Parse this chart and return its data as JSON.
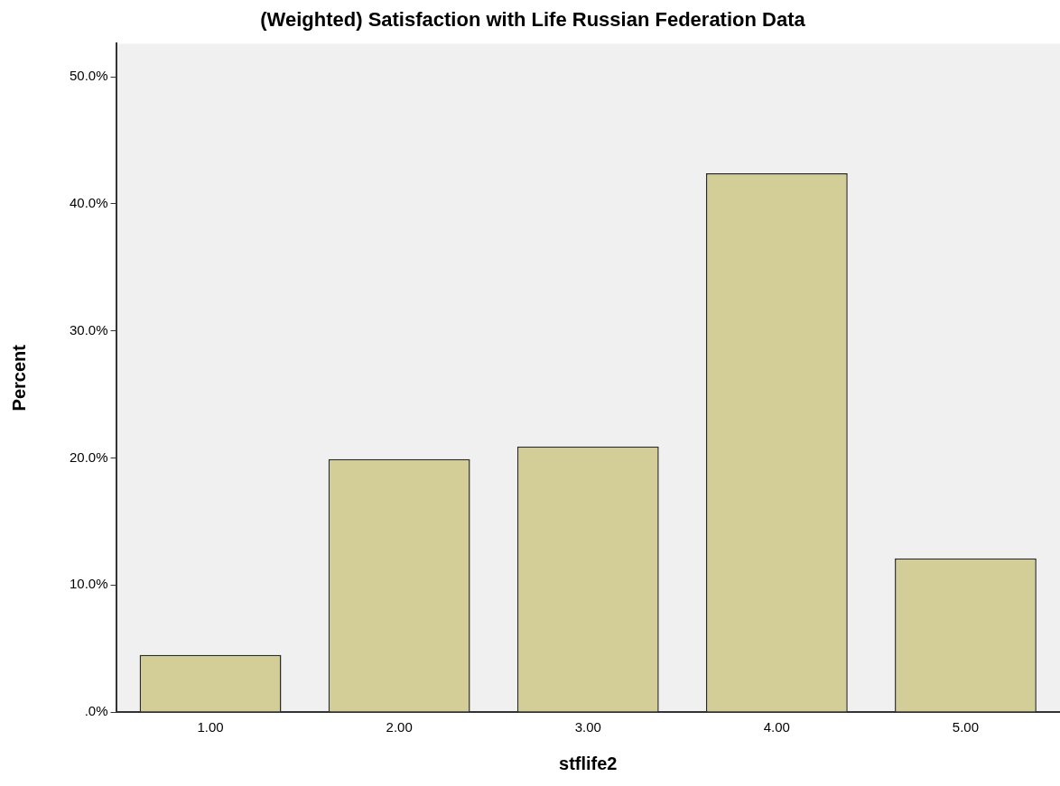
{
  "chart_data": {
    "type": "bar",
    "title": "(Weighted) Satisfaction with Life Russian Federation Data",
    "xlabel": "stflife2",
    "ylabel": "Percent",
    "categories": [
      "1.00",
      "2.00",
      "3.00",
      "4.00",
      "5.00"
    ],
    "values": [
      4.5,
      19.9,
      20.9,
      42.4,
      12.1
    ],
    "color": "#d3ce97",
    "ylim": [
      0,
      52.6
    ],
    "yticks": [
      {
        "value": 0,
        "label": ".0%"
      },
      {
        "value": 10,
        "label": "10.0%"
      },
      {
        "value": 20,
        "label": "20.0%"
      },
      {
        "value": 30,
        "label": "30.0%"
      },
      {
        "value": 40,
        "label": "40.0%"
      },
      {
        "value": 50,
        "label": "50.0%"
      }
    ],
    "grid": false,
    "legend": false
  }
}
